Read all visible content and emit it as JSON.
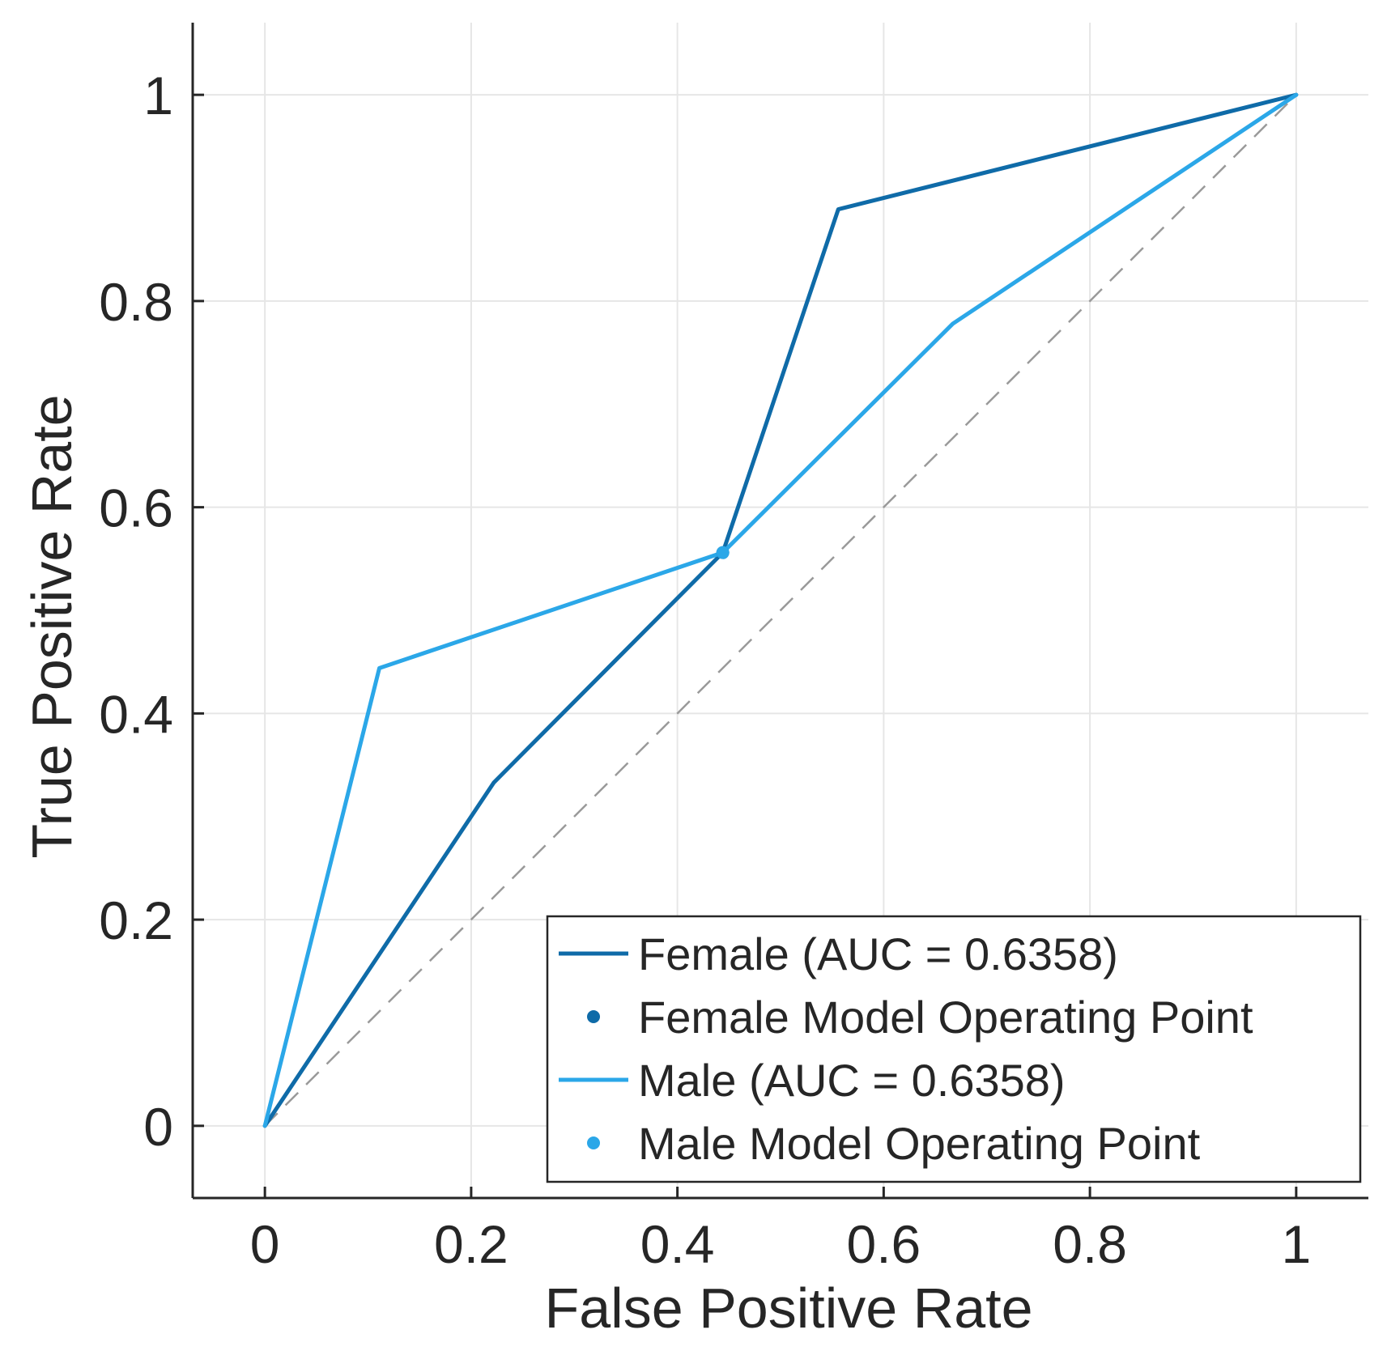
{
  "chart_data": {
    "type": "line",
    "title": "",
    "xlabel": "False Positive Rate",
    "ylabel": "True Positive Rate",
    "xlim": [
      -0.07,
      1.07
    ],
    "ylim": [
      -0.07,
      1.07
    ],
    "xticks": [
      0,
      0.2,
      0.4,
      0.6,
      0.8,
      1
    ],
    "xtick_labels": [
      "0",
      "0.2",
      "0.4",
      "0.6",
      "0.8",
      "1"
    ],
    "yticks": [
      0,
      0.2,
      0.4,
      0.6,
      0.8,
      1
    ],
    "ytick_labels": [
      "0",
      "0.2",
      "0.4",
      "0.6",
      "0.8",
      "1"
    ],
    "grid": true,
    "legend_position": "bottom-right",
    "series": [
      {
        "name": "Female (AUC = 0.6358)",
        "color": "#0f6ba8",
        "x": [
          0,
          0.222,
          0.444,
          0.556,
          1
        ],
        "y": [
          0,
          0.333,
          0.556,
          0.889,
          1
        ]
      },
      {
        "name": "Male (AUC = 0.6358)",
        "color": "#2ba7e8",
        "x": [
          0,
          0.111,
          0.444,
          0.667,
          1
        ],
        "y": [
          0,
          0.444,
          0.556,
          0.778,
          1
        ]
      }
    ],
    "operating_points": [
      {
        "name": "Female Model Operating Point",
        "color": "#0f6ba8",
        "x": 0.444,
        "y": 0.556
      },
      {
        "name": "Male Model Operating Point",
        "color": "#2ba7e8",
        "x": 0.444,
        "y": 0.556
      }
    ],
    "reference_line": {
      "x": [
        0,
        1
      ],
      "y": [
        0,
        1
      ],
      "color": "#9a9a9a",
      "style": "dashed"
    },
    "legend": [
      {
        "label": "Female (AUC = 0.6358)",
        "kind": "line",
        "color": "#0f6ba8"
      },
      {
        "label": "Female Model Operating Point",
        "kind": "marker",
        "color": "#0f6ba8"
      },
      {
        "label": "Male (AUC = 0.6358)",
        "kind": "line",
        "color": "#2ba7e8"
      },
      {
        "label": "Male Model Operating Point",
        "kind": "marker",
        "color": "#2ba7e8"
      }
    ]
  }
}
